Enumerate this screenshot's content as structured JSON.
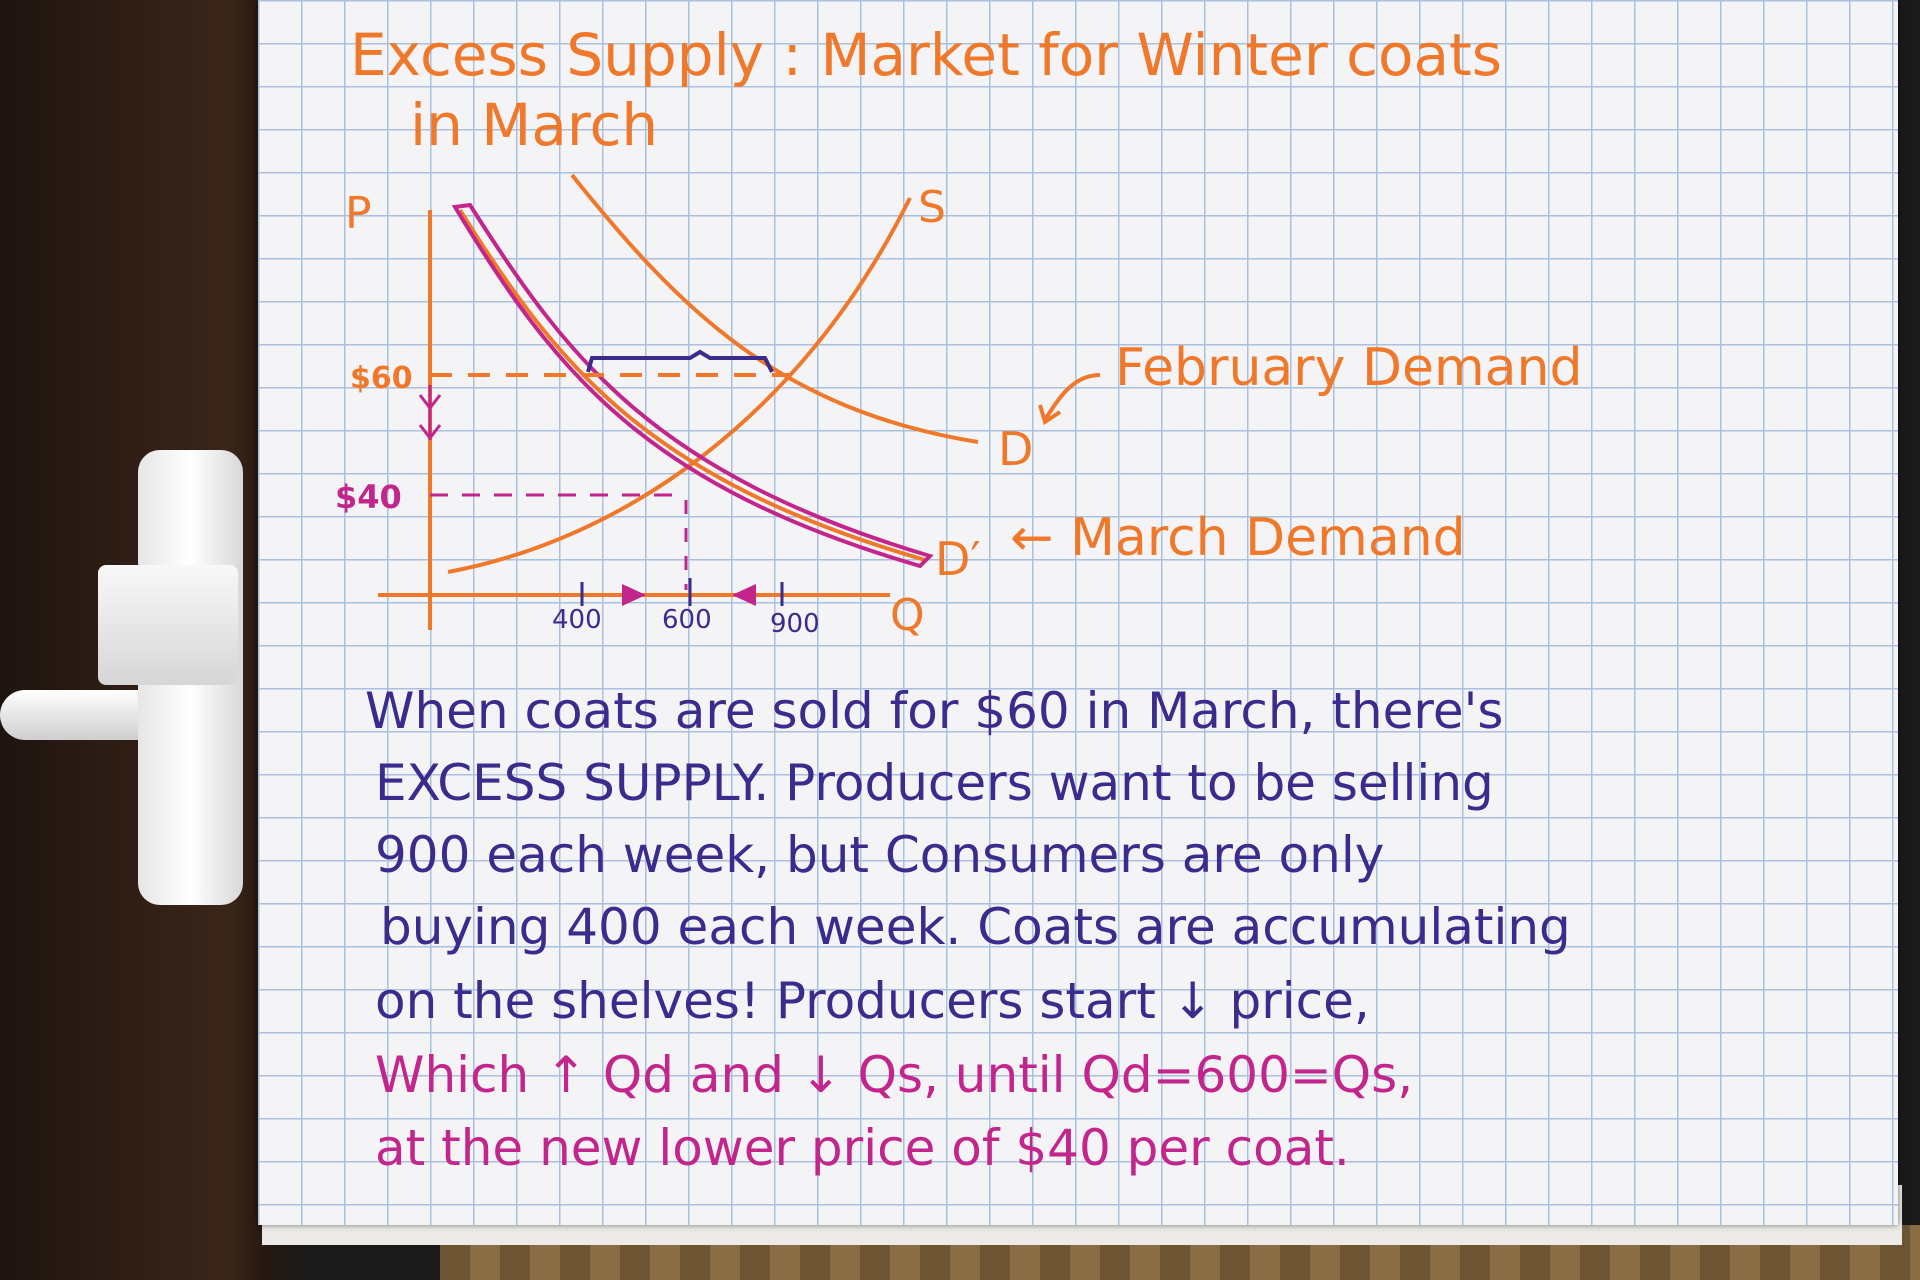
{
  "title_line1": "Excess Supply : Market for Winter coats",
  "title_line2": "in March",
  "axis": {
    "p": "P",
    "q": "Q"
  },
  "price_ticks": {
    "p60": "$60",
    "p40": "$40"
  },
  "qty_ticks": {
    "q400": "400",
    "q600": "600",
    "q900": "900"
  },
  "curve_labels": {
    "supply": "S",
    "demand": "D",
    "demand_prime": "D′"
  },
  "annotations": {
    "february": "February Demand",
    "march": "← March Demand"
  },
  "paragraph": [
    {
      "text": "When coats are sold for $60 in March, there's",
      "color": "#3b2b8c"
    },
    {
      "text": "EXCESS SUPPLY. Producers want to be selling",
      "color": "#3b2b8c"
    },
    {
      "text": "900 each week, but Consumers are only",
      "color": "#3b2b8c"
    },
    {
      "text": "buying 400 each week. Coats are accumulating",
      "color": "#3b2b8c"
    },
    {
      "text": "on the shelves! Producers start ↓ price,",
      "color": "#3b2b8c"
    },
    {
      "text": "Which ↑ Qd and ↓ Qs, until Qd=600=Qs,",
      "color": "#c2268d"
    },
    {
      "text": "at the new lower price of $40 per coat.",
      "color": "#c2268d"
    }
  ],
  "colors": {
    "orange": "#f0782a",
    "magenta": "#c2268d",
    "purple": "#3b2b8c"
  }
}
